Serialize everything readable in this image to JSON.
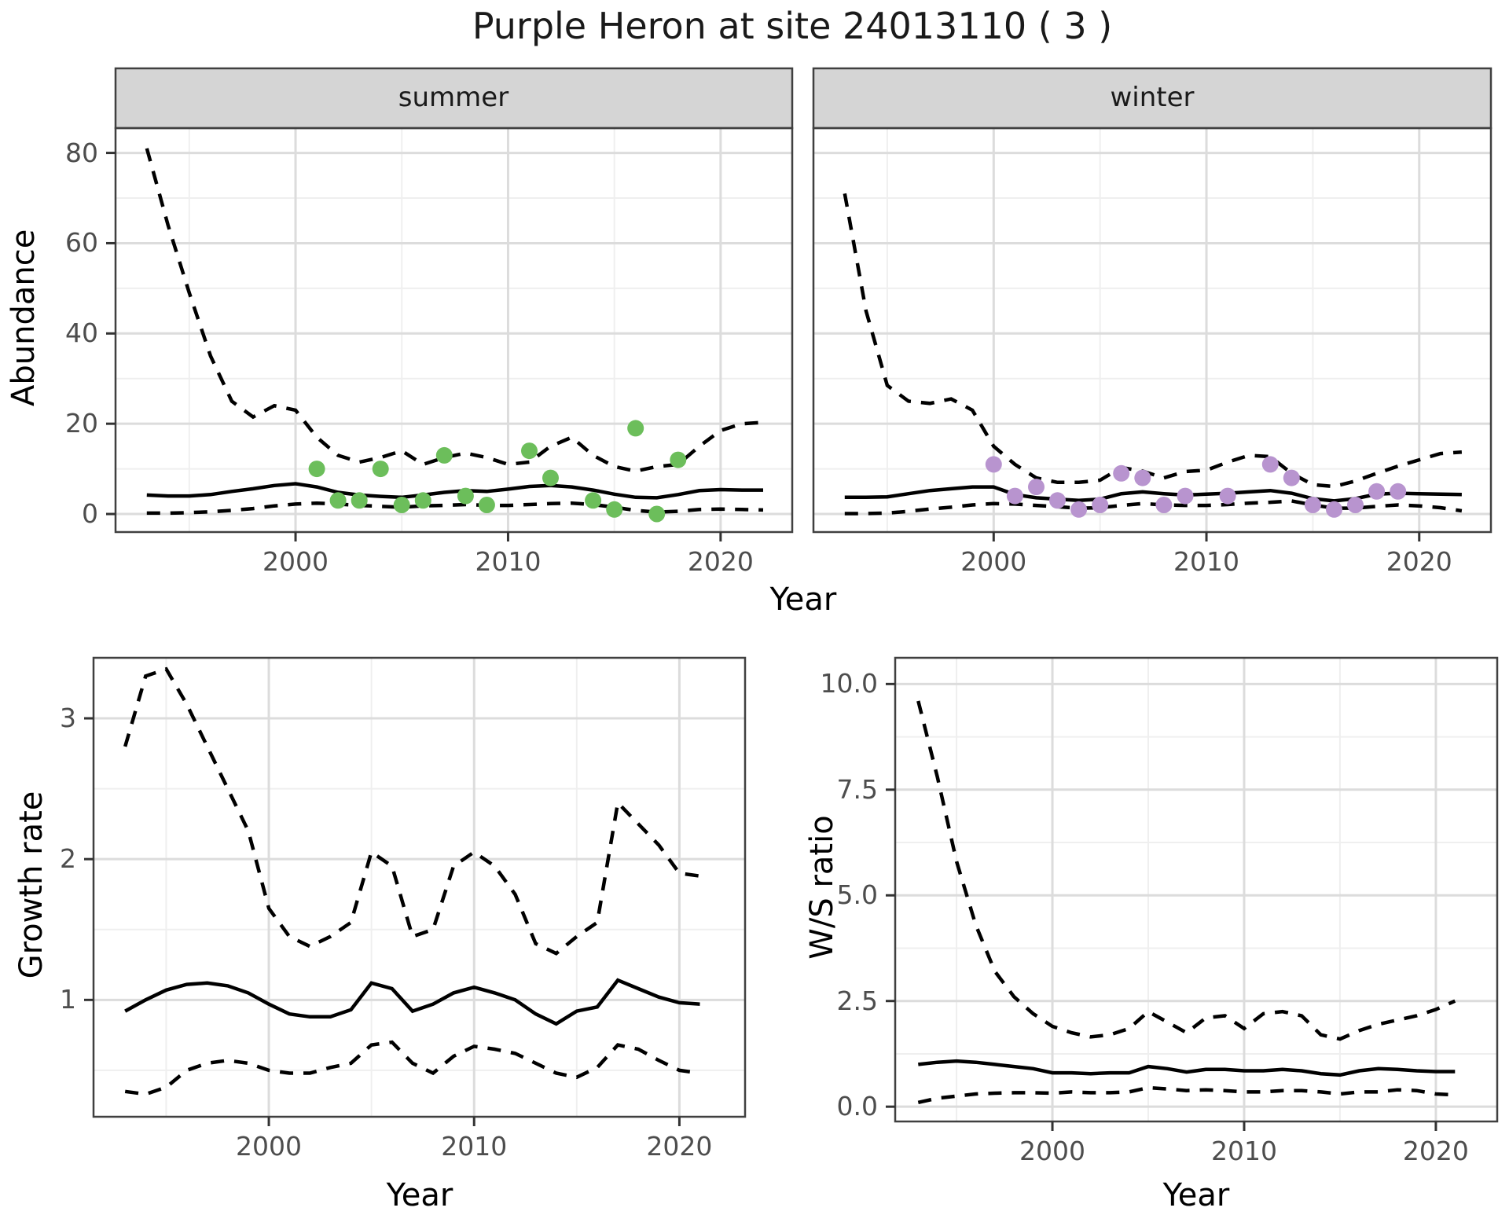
{
  "meta": {
    "title": "Purple Heron at site 24013110 ( 3 )",
    "top_xlabel": "Year",
    "colors": {
      "summer_point": "#6cbe5b",
      "winter_point": "#b894cf",
      "line": "#000000",
      "grid_major": "#dcdcdc",
      "grid_minor": "#efefef",
      "strip_bg": "#d5d5d5",
      "panel_border": "#404040",
      "tick_mark": "#333333",
      "tick_text": "#4d4d4d"
    }
  },
  "chart_data": [
    {
      "name": "abundance-summer",
      "type": "line",
      "facet_label": "summer",
      "ylabel": "Abundance",
      "xlabel": "Year",
      "legend_position": "none",
      "grid": true,
      "x": [
        1993,
        1994,
        1995,
        1996,
        1997,
        1998,
        1999,
        2000,
        2001,
        2002,
        2003,
        2004,
        2005,
        2006,
        2007,
        2008,
        2009,
        2010,
        2011,
        2012,
        2013,
        2014,
        2015,
        2016,
        2017,
        2018,
        2019,
        2020,
        2021,
        2022
      ],
      "series": [
        {
          "name": "upper-95ci",
          "style": "dashed",
          "values": [
            81,
            64,
            49,
            35,
            25,
            21.5,
            24,
            23,
            17,
            13,
            11.5,
            12.5,
            14,
            11,
            12.5,
            13.5,
            12.5,
            11,
            11.5,
            15,
            17,
            13,
            10.5,
            9.5,
            10.5,
            11,
            15,
            18.5,
            20,
            20.3
          ]
        },
        {
          "name": "median",
          "style": "solid",
          "values": [
            4.2,
            4,
            4,
            4.3,
            5,
            5.6,
            6.3,
            6.7,
            6,
            4.8,
            4.2,
            3.9,
            3.7,
            4.2,
            4.8,
            5.2,
            5,
            5.5,
            6.1,
            6.3,
            6,
            5.3,
            4.4,
            3.7,
            3.6,
            4.3,
            5.2,
            5.4,
            5.3,
            5.3
          ]
        },
        {
          "name": "lower-95ci",
          "style": "dashed",
          "values": [
            0.2,
            0.2,
            0.3,
            0.5,
            0.8,
            1.2,
            1.8,
            2.2,
            2.4,
            2.2,
            1.9,
            1.7,
            1.5,
            1.8,
            1.9,
            2.1,
            1.9,
            1.9,
            2.1,
            2.3,
            2.4,
            2.1,
            1.5,
            0.8,
            0.4,
            0.6,
            1,
            1.1,
            1,
            0.9
          ]
        }
      ],
      "observed_points": [
        [
          2001,
          10
        ],
        [
          2002,
          3
        ],
        [
          2003,
          3
        ],
        [
          2004,
          10
        ],
        [
          2005,
          2
        ],
        [
          2006,
          3
        ],
        [
          2007,
          13
        ],
        [
          2008,
          4
        ],
        [
          2009,
          2
        ],
        [
          2011,
          14
        ],
        [
          2012,
          8
        ],
        [
          2014,
          3
        ],
        [
          2015,
          1
        ],
        [
          2016,
          19
        ],
        [
          2017,
          0
        ],
        [
          2018,
          12
        ]
      ],
      "point_color_key": "summer_point",
      "xlim": [
        1991.53,
        2023.37
      ],
      "ylim": [
        -4,
        85.5
      ],
      "x_major": [
        2000,
        2010,
        2020
      ],
      "x_minor": [
        1995,
        2005,
        2015
      ],
      "x_tick_labels": [
        "2000",
        "2010",
        "2020"
      ],
      "y_major": [
        0,
        20,
        40,
        60,
        80
      ],
      "y_minor": [
        10,
        30,
        50,
        70
      ],
      "y_tick_labels": [
        "0",
        "20",
        "40",
        "60",
        "80"
      ]
    },
    {
      "name": "abundance-winter",
      "type": "line",
      "facet_label": "winter",
      "ylabel": "",
      "xlabel": "Year",
      "legend_position": "none",
      "grid": true,
      "x": [
        1993,
        1994,
        1995,
        1996,
        1997,
        1998,
        1999,
        2000,
        2001,
        2002,
        2003,
        2004,
        2005,
        2006,
        2007,
        2008,
        2009,
        2010,
        2011,
        2012,
        2013,
        2014,
        2015,
        2016,
        2017,
        2018,
        2019,
        2020,
        2021,
        2022
      ],
      "series": [
        {
          "name": "upper-95ci",
          "style": "dashed",
          "values": [
            71,
            45,
            28.5,
            25,
            24.5,
            25.5,
            23,
            15,
            11,
            8,
            7,
            7,
            7.5,
            10.3,
            9.5,
            8,
            9.4,
            9.7,
            11.5,
            13,
            12.7,
            9,
            6.5,
            6.1,
            7.3,
            9,
            10.6,
            12,
            13.4,
            13.7
          ]
        },
        {
          "name": "median",
          "style": "solid",
          "values": [
            3.7,
            3.7,
            3.8,
            4.5,
            5.2,
            5.6,
            6,
            6,
            4.3,
            3.6,
            3.3,
            3,
            3.3,
            4.5,
            4.9,
            4.5,
            4.2,
            4.4,
            4.6,
            4.9,
            5.2,
            4.6,
            3.4,
            2.9,
            3.4,
            4.4,
            4.6,
            4.5,
            4.4,
            4.3
          ]
        },
        {
          "name": "lower-95ci",
          "style": "dashed",
          "values": [
            0.1,
            0.1,
            0.2,
            0.6,
            1.1,
            1.5,
            2,
            2.3,
            2.2,
            1.9,
            1.6,
            1.3,
            1.4,
            1.9,
            2.3,
            2,
            1.9,
            1.9,
            2.1,
            2.4,
            2.6,
            2.9,
            2,
            1.3,
            1.3,
            1.7,
            2,
            1.8,
            1.4,
            0.7
          ]
        }
      ],
      "observed_points": [
        [
          2000,
          11
        ],
        [
          2001,
          4
        ],
        [
          2002,
          6
        ],
        [
          2003,
          3
        ],
        [
          2004,
          1
        ],
        [
          2005,
          2
        ],
        [
          2006,
          9
        ],
        [
          2007,
          8
        ],
        [
          2008,
          2
        ],
        [
          2009,
          4
        ],
        [
          2011,
          4
        ],
        [
          2013,
          11
        ],
        [
          2014,
          8
        ],
        [
          2015,
          2
        ],
        [
          2016,
          1
        ],
        [
          2017,
          2
        ],
        [
          2018,
          5
        ],
        [
          2019,
          5
        ]
      ],
      "point_color_key": "winter_point",
      "xlim": [
        1991.53,
        2023.37
      ],
      "ylim": [
        -4,
        85.5
      ],
      "x_major": [
        2000,
        2010,
        2020
      ],
      "x_minor": [
        1995,
        2005,
        2015
      ],
      "x_tick_labels": [
        "2000",
        "2010",
        "2020"
      ],
      "y_major": [
        0,
        20,
        40,
        60,
        80
      ],
      "y_minor": [
        10,
        30,
        50,
        70
      ],
      "y_tick_labels": []
    },
    {
      "name": "growth-rate",
      "type": "line",
      "facet_label": "",
      "ylabel": "Growth rate",
      "xlabel": "Year",
      "legend_position": "none",
      "grid": true,
      "x": [
        1993,
        1994,
        1995,
        1996,
        1997,
        1998,
        1999,
        2000,
        2001,
        2002,
        2003,
        2004,
        2005,
        2006,
        2007,
        2008,
        2009,
        2010,
        2011,
        2012,
        2013,
        2014,
        2015,
        2016,
        2017,
        2018,
        2019,
        2020,
        2021
      ],
      "series": [
        {
          "name": "upper-95ci",
          "style": "dashed",
          "values": [
            2.8,
            3.3,
            3.35,
            3.1,
            2.8,
            2.5,
            2.2,
            1.65,
            1.45,
            1.38,
            1.45,
            1.55,
            2.05,
            1.95,
            1.45,
            1.5,
            1.95,
            2.05,
            1.95,
            1.75,
            1.4,
            1.33,
            1.45,
            1.55,
            2.4,
            2.25,
            2.1,
            1.9,
            1.88
          ]
        },
        {
          "name": "median",
          "style": "solid",
          "values": [
            0.92,
            1,
            1.07,
            1.11,
            1.12,
            1.1,
            1.05,
            0.97,
            0.9,
            0.88,
            0.88,
            0.93,
            1.12,
            1.08,
            0.92,
            0.97,
            1.05,
            1.09,
            1.05,
            1,
            0.9,
            0.83,
            0.92,
            0.95,
            1.14,
            1.08,
            1.02,
            0.98,
            0.97
          ]
        },
        {
          "name": "lower-95ci",
          "style": "dashed",
          "values": [
            0.35,
            0.33,
            0.38,
            0.5,
            0.55,
            0.57,
            0.55,
            0.5,
            0.48,
            0.48,
            0.52,
            0.55,
            0.68,
            0.7,
            0.55,
            0.48,
            0.6,
            0.67,
            0.65,
            0.62,
            0.55,
            0.48,
            0.45,
            0.52,
            0.68,
            0.65,
            0.57,
            0.5,
            0.48
          ]
        }
      ],
      "observed_points": [],
      "point_color_key": "",
      "xlim": [
        1991.46,
        2023.2
      ],
      "ylim": [
        0.17,
        3.43
      ],
      "x_major": [
        2000,
        2010,
        2020
      ],
      "x_minor": [
        1995,
        2005,
        2015
      ],
      "x_tick_labels": [
        "2000",
        "2010",
        "2020"
      ],
      "y_major": [
        1,
        2,
        3
      ],
      "y_minor": [
        0.5,
        1.5,
        2.5
      ],
      "y_tick_labels": [
        "1",
        "2",
        "3"
      ]
    },
    {
      "name": "ws-ratio",
      "type": "line",
      "facet_label": "",
      "ylabel": "W/S ratio",
      "xlabel": "Year",
      "legend_position": "none",
      "grid": true,
      "x": [
        1993,
        1994,
        1995,
        1996,
        1997,
        1998,
        1999,
        2000,
        2001,
        2002,
        2003,
        2004,
        2005,
        2006,
        2007,
        2008,
        2009,
        2010,
        2011,
        2012,
        2013,
        2014,
        2015,
        2016,
        2017,
        2018,
        2019,
        2020,
        2021
      ],
      "series": [
        {
          "name": "upper-95ci",
          "style": "dashed",
          "values": [
            9.6,
            7.8,
            5.8,
            4.3,
            3.2,
            2.6,
            2.2,
            1.9,
            1.75,
            1.65,
            1.7,
            1.85,
            2.25,
            2,
            1.75,
            2.1,
            2.15,
            1.85,
            2.2,
            2.25,
            2.15,
            1.7,
            1.6,
            1.8,
            1.95,
            2.05,
            2.15,
            2.3,
            2.5
          ]
        },
        {
          "name": "median",
          "style": "solid",
          "values": [
            1,
            1.05,
            1.08,
            1.05,
            1,
            0.95,
            0.9,
            0.8,
            0.8,
            0.78,
            0.8,
            0.8,
            0.95,
            0.9,
            0.82,
            0.88,
            0.88,
            0.85,
            0.85,
            0.88,
            0.85,
            0.78,
            0.75,
            0.85,
            0.9,
            0.88,
            0.85,
            0.83,
            0.83
          ]
        },
        {
          "name": "lower-95ci",
          "style": "dashed",
          "values": [
            0.1,
            0.2,
            0.25,
            0.3,
            0.32,
            0.33,
            0.33,
            0.32,
            0.35,
            0.33,
            0.33,
            0.35,
            0.45,
            0.42,
            0.38,
            0.4,
            0.38,
            0.35,
            0.35,
            0.38,
            0.38,
            0.35,
            0.3,
            0.35,
            0.35,
            0.4,
            0.38,
            0.3,
            0.28
          ]
        }
      ],
      "observed_points": [],
      "point_color_key": "",
      "xlim": [
        1991.8,
        2023.2
      ],
      "ylim": [
        -0.35,
        10.62
      ],
      "x_major": [
        2000,
        2010,
        2020
      ],
      "x_minor": [
        1995,
        2005,
        2015
      ],
      "x_tick_labels": [
        "2000",
        "2010",
        "2020"
      ],
      "y_major": [
        0,
        2.5,
        5,
        7.5,
        10
      ],
      "y_minor": [
        1.25,
        3.75,
        6.25,
        8.75
      ],
      "y_tick_labels": [
        "0.0",
        "2.5",
        "5.0",
        "7.5",
        "10.0"
      ]
    }
  ]
}
